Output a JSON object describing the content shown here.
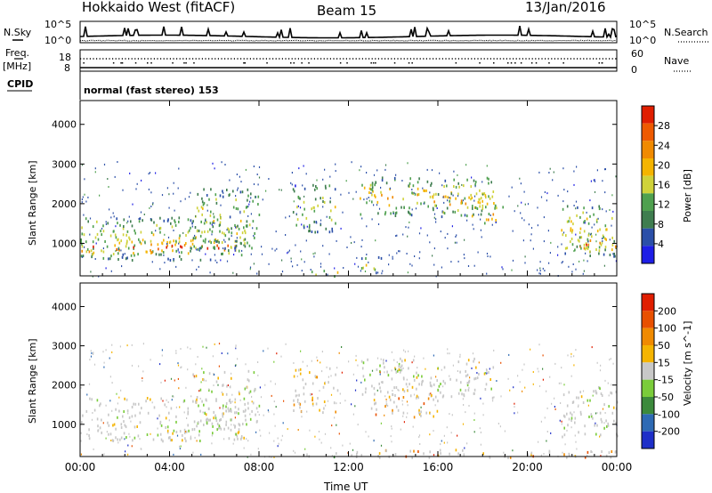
{
  "header": {
    "radar": "Hokkaido West (fitACF)",
    "beam": "Beam 15",
    "date": "13/Jan/2016"
  },
  "noise_panel": {
    "left_label": "N.Sky",
    "right_label": "N.Search",
    "left_ticks": [
      "10^5",
      "10^0"
    ],
    "right_ticks": [
      "10^5",
      "10^0"
    ]
  },
  "freq_panel": {
    "left_label": "Freq.",
    "left_unit": "[MHz]",
    "left_ticks": [
      "18",
      "8"
    ],
    "right_label": "Nave",
    "right_ticks": [
      "60",
      "0"
    ],
    "cpid_label": "CPID",
    "cpid_text": "normal (fast stereo) 153"
  },
  "colors": {
    "power_scale": [
      "#1e1ee6",
      "#2b4fa8",
      "#3f7d4f",
      "#4fa04f",
      "#cfd23a",
      "#f4b400",
      "#f08a00",
      "#ee5a00",
      "#e01e00"
    ],
    "velocity_scale": [
      "#1e2fc8",
      "#2e6ab4",
      "#3c8a3c",
      "#7acc3a",
      "#c8c8c8",
      "#f5b400",
      "#f08a00",
      "#e85000",
      "#e01e00"
    ]
  },
  "chart_data": [
    {
      "type": "heatmap",
      "name": "power",
      "ylabel": "Slant Range [km]",
      "ylim": [
        180,
        4600
      ],
      "xlim": [
        0,
        24
      ],
      "y_ticks": [
        "1000",
        "2000",
        "3000",
        "4000"
      ],
      "colorbar": {
        "label": "Power [dB]",
        "ticks": [
          "28",
          "24",
          "20",
          "16",
          "12",
          "8",
          "4"
        ],
        "range": [
          0,
          32
        ]
      },
      "echo_regions": [
        {
          "t0": 0.0,
          "t1": 7.5,
          "r0": 600,
          "r1": 1700,
          "level": 0.55
        },
        {
          "t0": 0.0,
          "t1": 7.2,
          "r0": 750,
          "r1": 1100,
          "level": 0.95
        },
        {
          "t0": 5.0,
          "t1": 8.0,
          "r0": 900,
          "r1": 2400,
          "level": 0.55
        },
        {
          "t0": 9.5,
          "t1": 11.5,
          "r0": 1300,
          "r1": 2500,
          "level": 0.45
        },
        {
          "t0": 12.5,
          "t1": 18.5,
          "r0": 1700,
          "r1": 2700,
          "level": 0.6
        },
        {
          "t0": 15.5,
          "t1": 19.0,
          "r0": 1900,
          "r1": 2300,
          "level": 0.75
        },
        {
          "t0": 17.5,
          "t1": 18.6,
          "r0": 1500,
          "r1": 2000,
          "level": 0.85
        },
        {
          "t0": 21.5,
          "t1": 24.0,
          "r0": 700,
          "r1": 2000,
          "level": 0.6
        },
        {
          "t0": 22.0,
          "t1": 24.0,
          "r0": 800,
          "r1": 1200,
          "level": 0.9
        },
        {
          "t0": 12.5,
          "t1": 13.5,
          "r0": 250,
          "r1": 700,
          "level": 0.5
        },
        {
          "t0": 10.0,
          "t1": 11.5,
          "r0": 180,
          "r1": 350,
          "level": 0.7
        }
      ]
    },
    {
      "type": "heatmap",
      "name": "velocity",
      "xlabel": "Time UT",
      "ylabel": "Slant Range [km]",
      "ylim": [
        180,
        4600
      ],
      "xlim": [
        0,
        24
      ],
      "x_ticks": [
        "00:00",
        "04:00",
        "08:00",
        "12:00",
        "16:00",
        "20:00",
        "00:00"
      ],
      "y_ticks": [
        "1000",
        "2000",
        "3000",
        "4000"
      ],
      "colorbar": {
        "label": "Velocity [m s^-1]",
        "ticks": [
          "200",
          "100",
          "50",
          "15",
          "-15",
          "-50",
          "-100",
          "-200"
        ],
        "range": [
          -250,
          250
        ]
      },
      "echo_regions": [
        {
          "t0": 0.0,
          "t1": 7.5,
          "r0": 600,
          "r1": 1700,
          "level": 0.0
        },
        {
          "t0": 5.0,
          "t1": 8.0,
          "r0": 900,
          "r1": 2400,
          "level": 0.05
        },
        {
          "t0": 9.5,
          "t1": 11.5,
          "r0": 1300,
          "r1": 2500,
          "level": -0.4
        },
        {
          "t0": 12.5,
          "t1": 18.5,
          "r0": 1700,
          "r1": 2700,
          "level": 0.0
        },
        {
          "t0": 13.0,
          "t1": 16.0,
          "r0": 1200,
          "r1": 1800,
          "level": -0.4
        },
        {
          "t0": 21.5,
          "t1": 24.0,
          "r0": 700,
          "r1": 2000,
          "level": 0.05
        },
        {
          "t0": 12.0,
          "t1": 24.0,
          "r0": 180,
          "r1": 380,
          "level": -0.5
        },
        {
          "t0": 10.0,
          "t1": 11.5,
          "r0": 180,
          "r1": 400,
          "level": 0.35
        }
      ]
    }
  ]
}
